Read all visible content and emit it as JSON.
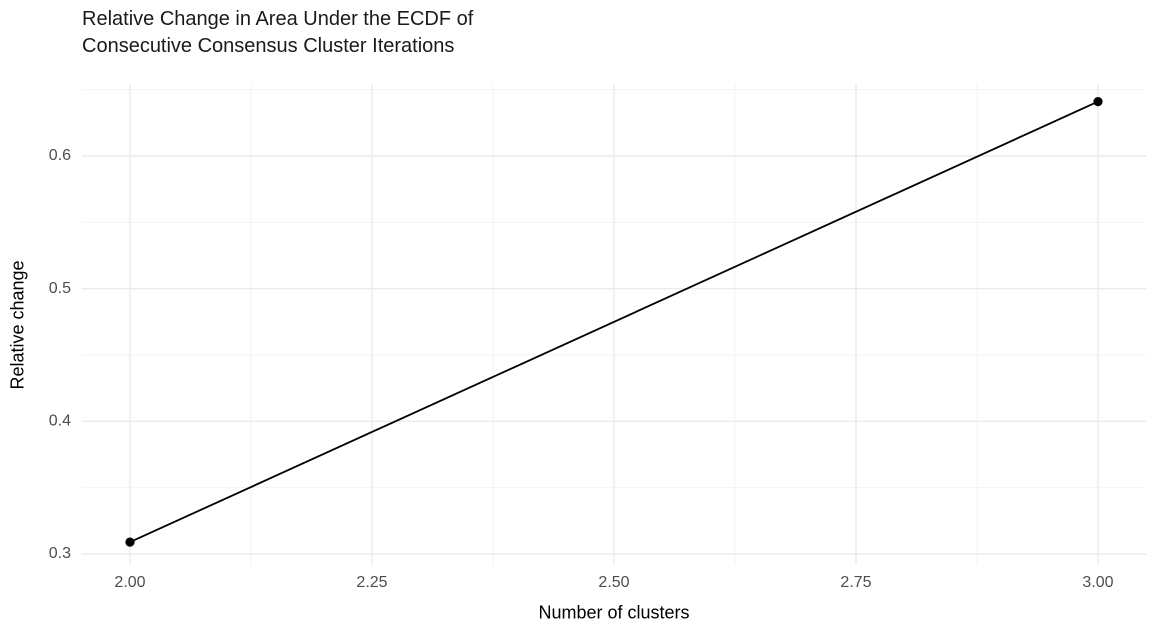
{
  "header": {
    "title_lines": [
      "Relative Change in Area Under the ECDF of",
      "Consecutive Consensus Cluster Iterations"
    ]
  },
  "chart_data": {
    "type": "line",
    "title": "Relative Change in Area Under the ECDF of Consecutive Consensus Cluster Iterations",
    "xlabel": "Number of clusters",
    "ylabel": "Relative change",
    "x": [
      2.0,
      3.0
    ],
    "y": [
      0.309,
      0.641
    ],
    "points": [
      {
        "x": 2.0,
        "y": 0.309
      },
      {
        "x": 3.0,
        "y": 0.641
      }
    ],
    "xlim": [
      1.95,
      3.05
    ],
    "ylim": [
      0.2915,
      0.6545
    ],
    "x_ticks": [
      2.0,
      2.25,
      2.5,
      2.75,
      3.0
    ],
    "x_tick_labels": [
      "2.00",
      "2.25",
      "2.50",
      "2.75",
      "3.00"
    ],
    "y_ticks": [
      0.3,
      0.4,
      0.5,
      0.6
    ],
    "y_tick_labels": [
      "0.3",
      "0.4",
      "0.5",
      "0.6"
    ],
    "x_minor_gridlines": [
      2.125,
      2.375,
      2.625,
      2.875
    ],
    "y_minor_gridlines": [
      0.35,
      0.45,
      0.55,
      0.65
    ],
    "grid": true,
    "legend": "none",
    "theme": "minimal-white",
    "colors": {
      "line": "#000000",
      "point": "#000000",
      "grid_major": "#EBEBEB",
      "grid_minor": "#F2F2F2",
      "tick_label": "#4D4D4D",
      "axis_title": "#000000",
      "title": "#1A1A1A",
      "background": "#FFFFFF"
    }
  }
}
